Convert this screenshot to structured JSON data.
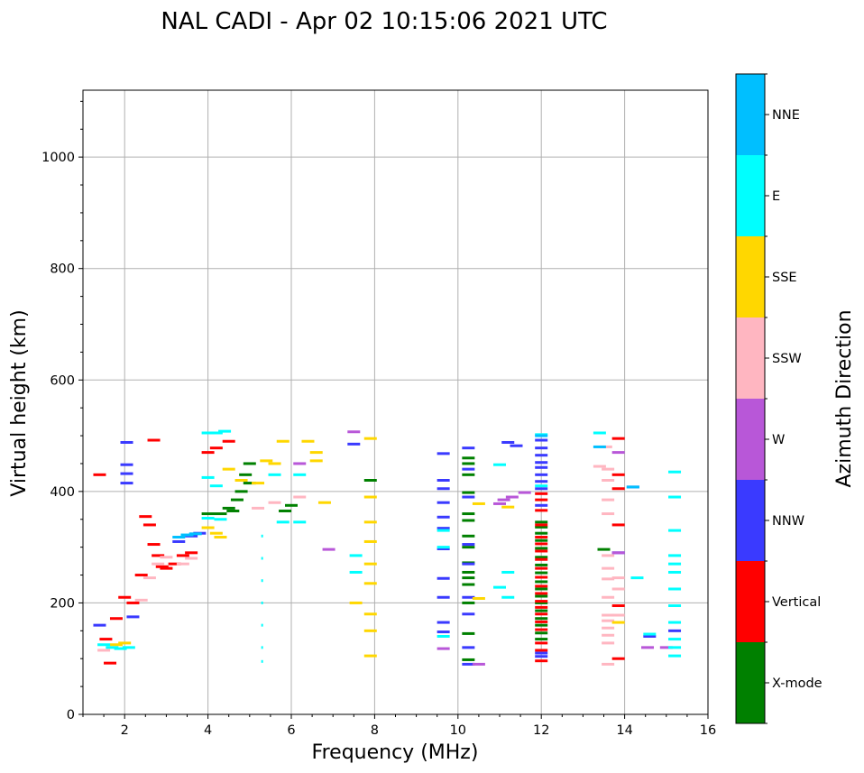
{
  "chart_data": {
    "type": "scatter",
    "title": "NAL CADI - Apr 02 10:15:06 2021 UTC",
    "xlabel": "Frequency (MHz)",
    "ylabel": "Virtual height (km)",
    "xlim": [
      1,
      16
    ],
    "ylim": [
      0,
      1120
    ],
    "xticks": [
      2,
      4,
      6,
      8,
      10,
      12,
      14,
      16
    ],
    "yticks": [
      0,
      200,
      400,
      600,
      800,
      1000
    ],
    "grid": true,
    "colorbar": {
      "label": "Azimuth Direction",
      "categories": [
        {
          "name": "X-mode",
          "color": "#008000"
        },
        {
          "name": "Vertical",
          "color": "#ff0000"
        },
        {
          "name": "NNW",
          "color": "#3a3aff"
        },
        {
          "name": "W",
          "color": "#b857d8"
        },
        {
          "name": "SSW",
          "color": "#ffb6c1"
        },
        {
          "name": "SSE",
          "color": "#ffd700"
        },
        {
          "name": "E",
          "color": "#00ffff"
        },
        {
          "name": "NNE",
          "color": "#00bfff"
        }
      ]
    },
    "series": [
      {
        "name": "X-mode",
        "points": [
          [
            4.0,
            360
          ],
          [
            4.3,
            360
          ],
          [
            4.6,
            365
          ],
          [
            4.7,
            385
          ],
          [
            4.9,
            430
          ],
          [
            5.0,
            450
          ],
          [
            5.0,
            415
          ],
          [
            4.8,
            400
          ],
          [
            4.5,
            370
          ],
          [
            5.85,
            365
          ],
          [
            6.0,
            375
          ],
          [
            7.9,
            420
          ],
          [
            10.25,
            255
          ],
          [
            10.25,
            272
          ],
          [
            10.25,
            300
          ],
          [
            10.25,
            320
          ],
          [
            10.25,
            348
          ],
          [
            10.25,
            360
          ],
          [
            10.25,
            398
          ],
          [
            10.25,
            430
          ],
          [
            10.25,
            450
          ],
          [
            10.25,
            460
          ],
          [
            10.25,
            245
          ],
          [
            10.25,
            233
          ],
          [
            10.25,
            200
          ],
          [
            10.25,
            145
          ],
          [
            10.25,
            98
          ],
          [
            12.0,
            345
          ],
          [
            12.0,
            336
          ],
          [
            12.0,
            325
          ],
          [
            12.0,
            312
          ],
          [
            12.0,
            298
          ],
          [
            12.0,
            282
          ],
          [
            12.0,
            268
          ],
          [
            12.0,
            254
          ],
          [
            12.0,
            238
          ],
          [
            12.0,
            225
          ],
          [
            12.0,
            212
          ],
          [
            12.0,
            200
          ],
          [
            12.0,
            186
          ],
          [
            12.0,
            172
          ],
          [
            12.0,
            160
          ],
          [
            12.0,
            146
          ],
          [
            12.0,
            135
          ],
          [
            13.5,
            296
          ]
        ]
      },
      {
        "name": "Vertical",
        "points": [
          [
            1.4,
            430
          ],
          [
            1.55,
            135
          ],
          [
            1.65,
            92
          ],
          [
            1.8,
            172
          ],
          [
            2.0,
            210
          ],
          [
            2.2,
            200
          ],
          [
            2.4,
            250
          ],
          [
            2.5,
            355
          ],
          [
            2.6,
            340
          ],
          [
            2.7,
            305
          ],
          [
            2.8,
            285
          ],
          [
            2.9,
            265
          ],
          [
            3.0,
            262
          ],
          [
            3.2,
            270
          ],
          [
            3.4,
            285
          ],
          [
            3.6,
            290
          ],
          [
            4.0,
            470
          ],
          [
            4.2,
            478
          ],
          [
            4.5,
            490
          ],
          [
            2.7,
            492
          ],
          [
            12.0,
            396
          ],
          [
            12.0,
            385
          ],
          [
            12.0,
            366
          ],
          [
            12.0,
            340
          ],
          [
            12.0,
            318
          ],
          [
            12.0,
            306
          ],
          [
            12.0,
            293
          ],
          [
            12.0,
            278
          ],
          [
            12.0,
            262
          ],
          [
            12.0,
            246
          ],
          [
            12.0,
            230
          ],
          [
            12.0,
            217
          ],
          [
            12.0,
            203
          ],
          [
            12.0,
            192
          ],
          [
            12.0,
            180
          ],
          [
            12.0,
            166
          ],
          [
            12.0,
            152
          ],
          [
            12.0,
            128
          ],
          [
            12.0,
            115
          ],
          [
            12.0,
            96
          ],
          [
            13.85,
            495
          ],
          [
            13.85,
            430
          ],
          [
            13.85,
            405
          ],
          [
            13.85,
            340
          ],
          [
            13.85,
            195
          ],
          [
            13.85,
            100
          ]
        ]
      },
      {
        "name": "NNW",
        "points": [
          [
            1.4,
            160
          ],
          [
            2.05,
            415
          ],
          [
            2.05,
            432
          ],
          [
            2.05,
            448
          ],
          [
            2.05,
            488
          ],
          [
            2.2,
            175
          ],
          [
            3.3,
            310
          ],
          [
            3.6,
            320
          ],
          [
            3.8,
            325
          ],
          [
            7.5,
            485
          ],
          [
            9.65,
            468
          ],
          [
            9.65,
            420
          ],
          [
            9.65,
            405
          ],
          [
            9.65,
            380
          ],
          [
            9.65,
            354
          ],
          [
            9.65,
            334
          ],
          [
            9.65,
            297
          ],
          [
            9.65,
            244
          ],
          [
            9.65,
            210
          ],
          [
            9.65,
            165
          ],
          [
            9.65,
            148
          ],
          [
            10.25,
            478
          ],
          [
            10.25,
            440
          ],
          [
            10.25,
            390
          ],
          [
            10.25,
            305
          ],
          [
            10.25,
            270
          ],
          [
            10.25,
            210
          ],
          [
            10.25,
            180
          ],
          [
            10.25,
            120
          ],
          [
            10.25,
            90
          ],
          [
            11.2,
            488
          ],
          [
            11.4,
            482
          ],
          [
            12.0,
            492
          ],
          [
            12.0,
            478
          ],
          [
            12.0,
            465
          ],
          [
            12.0,
            452
          ],
          [
            12.0,
            443
          ],
          [
            12.0,
            430
          ],
          [
            12.0,
            418
          ],
          [
            12.0,
            405
          ],
          [
            12.0,
            375
          ],
          [
            12.0,
            110
          ],
          [
            12.0,
            104
          ],
          [
            13.85,
            290
          ],
          [
            14.2,
            408
          ],
          [
            14.6,
            140
          ],
          [
            15.2,
            150
          ]
        ]
      },
      {
        "name": "W",
        "points": [
          [
            6.2,
            450
          ],
          [
            6.9,
            296
          ],
          [
            7.5,
            507
          ],
          [
            9.65,
            118
          ],
          [
            10.5,
            90
          ],
          [
            11.0,
            378
          ],
          [
            11.1,
            385
          ],
          [
            11.3,
            390
          ],
          [
            11.6,
            398
          ],
          [
            13.85,
            470
          ],
          [
            13.85,
            290
          ],
          [
            14.55,
            120
          ],
          [
            15.0,
            120
          ]
        ]
      },
      {
        "name": "SSW",
        "points": [
          [
            1.5,
            115
          ],
          [
            2.4,
            205
          ],
          [
            2.6,
            245
          ],
          [
            2.8,
            270
          ],
          [
            3.0,
            282
          ],
          [
            3.4,
            270
          ],
          [
            3.6,
            280
          ],
          [
            5.2,
            370
          ],
          [
            5.6,
            380
          ],
          [
            6.2,
            390
          ],
          [
            13.4,
            445
          ],
          [
            13.55,
            480
          ],
          [
            13.6,
            440
          ],
          [
            13.6,
            420
          ],
          [
            13.6,
            385
          ],
          [
            13.6,
            360
          ],
          [
            13.6,
            285
          ],
          [
            13.6,
            262
          ],
          [
            13.6,
            243
          ],
          [
            13.6,
            210
          ],
          [
            13.6,
            178
          ],
          [
            13.6,
            168
          ],
          [
            13.6,
            155
          ],
          [
            13.6,
            142
          ],
          [
            13.6,
            128
          ],
          [
            13.6,
            90
          ],
          [
            13.85,
            245
          ],
          [
            13.85,
            225
          ],
          [
            13.85,
            178
          ],
          [
            13.85,
            165
          ]
        ]
      },
      {
        "name": "SSE",
        "points": [
          [
            1.8,
            125
          ],
          [
            2.0,
            128
          ],
          [
            4.0,
            335
          ],
          [
            4.2,
            325
          ],
          [
            4.3,
            318
          ],
          [
            4.5,
            440
          ],
          [
            4.8,
            420
          ],
          [
            5.2,
            415
          ],
          [
            5.4,
            455
          ],
          [
            5.6,
            450
          ],
          [
            5.8,
            490
          ],
          [
            6.4,
            490
          ],
          [
            6.6,
            470
          ],
          [
            6.6,
            455
          ],
          [
            6.8,
            380
          ],
          [
            7.55,
            200
          ],
          [
            7.9,
            495
          ],
          [
            7.9,
            390
          ],
          [
            7.9,
            345
          ],
          [
            7.9,
            310
          ],
          [
            7.9,
            270
          ],
          [
            7.9,
            235
          ],
          [
            7.9,
            180
          ],
          [
            7.9,
            150
          ],
          [
            7.9,
            105
          ],
          [
            10.5,
            378
          ],
          [
            10.5,
            208
          ],
          [
            11.2,
            372
          ],
          [
            13.85,
            165
          ]
        ]
      },
      {
        "name": "E",
        "points": [
          [
            1.5,
            125
          ],
          [
            1.7,
            120
          ],
          [
            1.9,
            118
          ],
          [
            2.1,
            120
          ],
          [
            4.0,
            505
          ],
          [
            4.2,
            505
          ],
          [
            4.4,
            508
          ],
          [
            4.0,
            425
          ],
          [
            4.2,
            410
          ],
          [
            4.0,
            352
          ],
          [
            4.3,
            350
          ],
          [
            5.3,
            320
          ],
          [
            5.3,
            280
          ],
          [
            5.3,
            240
          ],
          [
            5.3,
            200
          ],
          [
            5.3,
            160
          ],
          [
            5.3,
            120
          ],
          [
            5.3,
            95
          ],
          [
            5.6,
            430
          ],
          [
            5.8,
            345
          ],
          [
            6.2,
            345
          ],
          [
            6.2,
            430
          ],
          [
            7.55,
            285
          ],
          [
            7.55,
            255
          ],
          [
            9.65,
            330
          ],
          [
            9.65,
            300
          ],
          [
            9.65,
            140
          ],
          [
            11.0,
            448
          ],
          [
            11.0,
            228
          ],
          [
            11.2,
            255
          ],
          [
            11.2,
            210
          ],
          [
            12.0,
            502
          ],
          [
            12.0,
            410
          ],
          [
            13.4,
            505
          ],
          [
            14.3,
            245
          ],
          [
            14.6,
            144
          ],
          [
            15.2,
            435
          ],
          [
            15.2,
            390
          ],
          [
            15.2,
            330
          ],
          [
            15.2,
            285
          ],
          [
            15.2,
            270
          ],
          [
            15.2,
            255
          ],
          [
            15.2,
            225
          ],
          [
            15.2,
            195
          ],
          [
            15.2,
            165
          ],
          [
            15.2,
            135
          ],
          [
            15.2,
            120
          ],
          [
            15.2,
            105
          ]
        ]
      },
      {
        "name": "NNE",
        "points": [
          [
            3.3,
            318
          ],
          [
            3.5,
            322
          ],
          [
            3.7,
            324
          ],
          [
            12.0,
            500
          ],
          [
            13.4,
            480
          ],
          [
            14.2,
            408
          ]
        ]
      }
    ]
  }
}
